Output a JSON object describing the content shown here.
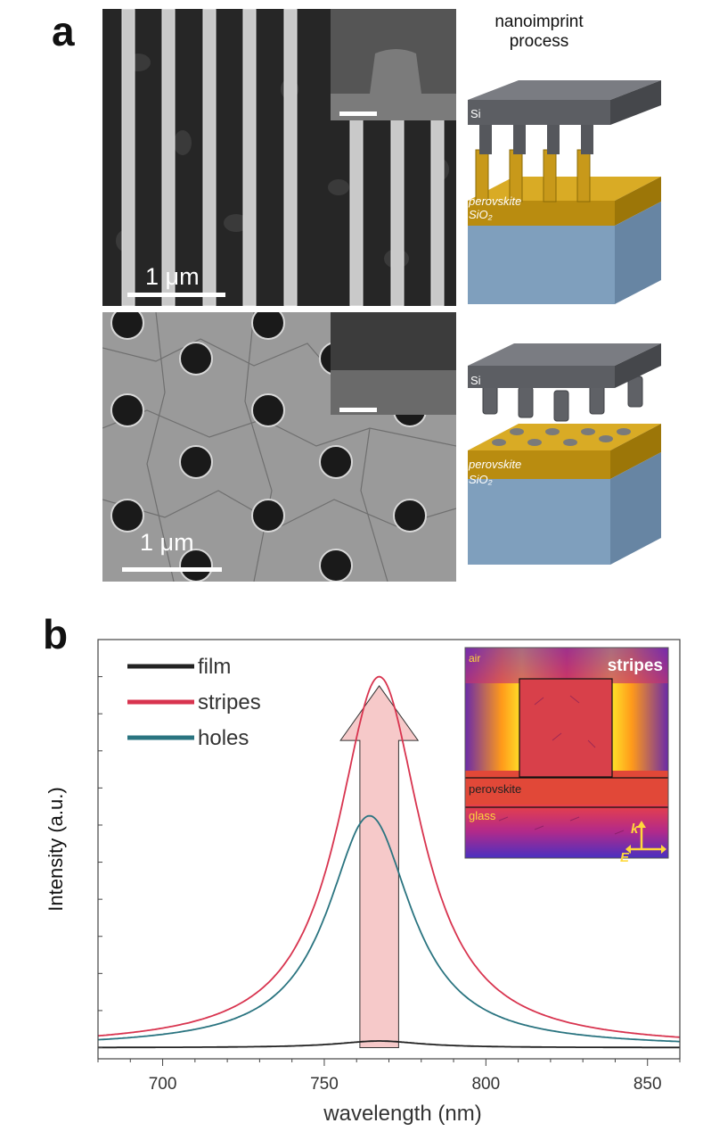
{
  "panel_a": {
    "letter": "a",
    "process_title": "nanoimprint process",
    "sem_top": {
      "scale_label": "1 μm"
    },
    "sem_bottom": {
      "scale_label": "1 μm"
    },
    "schematic_top": {
      "labels": [
        "Si",
        "perovskite",
        "SiO₂"
      ]
    },
    "schematic_bottom": {
      "labels": [
        "Si",
        "perovskite",
        "SiO₂"
      ]
    }
  },
  "panel_b": {
    "letter": "b"
  },
  "inset": {
    "title": "stripes",
    "labels": {
      "air": "air",
      "perovskite": "perovskite",
      "glass": "glass",
      "k": "k",
      "E": "E"
    }
  },
  "colors": {
    "film": "#222222",
    "stripes": "#d8344f",
    "holes": "#2a7480",
    "arrow_fill": "#f6c9c9",
    "schematic_top": "#616368",
    "perovskite": "#c79a16",
    "sio2": "#7f9fbd"
  },
  "chart_data": {
    "type": "line",
    "xlabel": "wavelength (nm)",
    "ylabel": "Intensity (a.u.)",
    "xlim": [
      680,
      860
    ],
    "ylim": [
      -0.03,
      1.1
    ],
    "xticks": [
      700,
      750,
      800,
      850
    ],
    "grid": false,
    "legend_position": "top-left",
    "series": [
      {
        "name": "film",
        "color": "#222222",
        "peak": 767,
        "amplitude": 0.018,
        "width": 20
      },
      {
        "name": "stripes",
        "color": "#d8344f",
        "peak": 767,
        "amplitude": 1.0,
        "width": 20
      },
      {
        "name": "holes",
        "color": "#2a7480",
        "peak": 764,
        "amplitude": 0.625,
        "width": 20
      }
    ]
  }
}
